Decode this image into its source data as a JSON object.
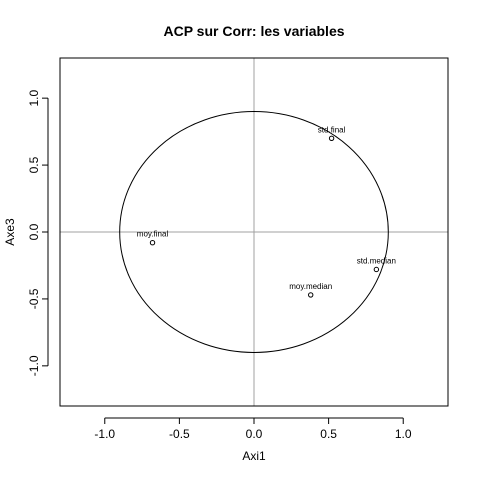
{
  "chart_data": {
    "type": "scatter",
    "title": "ACP sur Corr: les variables",
    "xlabel": "Axi1",
    "ylabel": "Axe3",
    "xlim": [
      -1.3,
      1.3
    ],
    "ylim": [
      -1.3,
      1.3
    ],
    "x_ticks": [
      -1.0,
      -0.5,
      0.0,
      0.5,
      1.0
    ],
    "x_tick_labels": [
      "-1.0",
      "-0.5",
      "0.0",
      "0.5",
      "1.0"
    ],
    "y_ticks": [
      -1.0,
      -0.5,
      0.0,
      0.5,
      1.0
    ],
    "y_tick_labels": [
      "-1.0",
      "-0.5",
      "0.0",
      "0.5",
      "1.0"
    ],
    "reference_lines": {
      "x": 0,
      "y": 0,
      "color": "#a0a0a0"
    },
    "circle_radius": 0.9,
    "grid": false,
    "legend": false,
    "points": [
      {
        "label": "std.final",
        "x": 0.52,
        "y": 0.7
      },
      {
        "label": "moy.final",
        "x": -0.68,
        "y": -0.08
      },
      {
        "label": "std.median",
        "x": 0.82,
        "y": -0.28
      },
      {
        "label": "moy.median",
        "x": 0.38,
        "y": -0.47
      }
    ]
  }
}
